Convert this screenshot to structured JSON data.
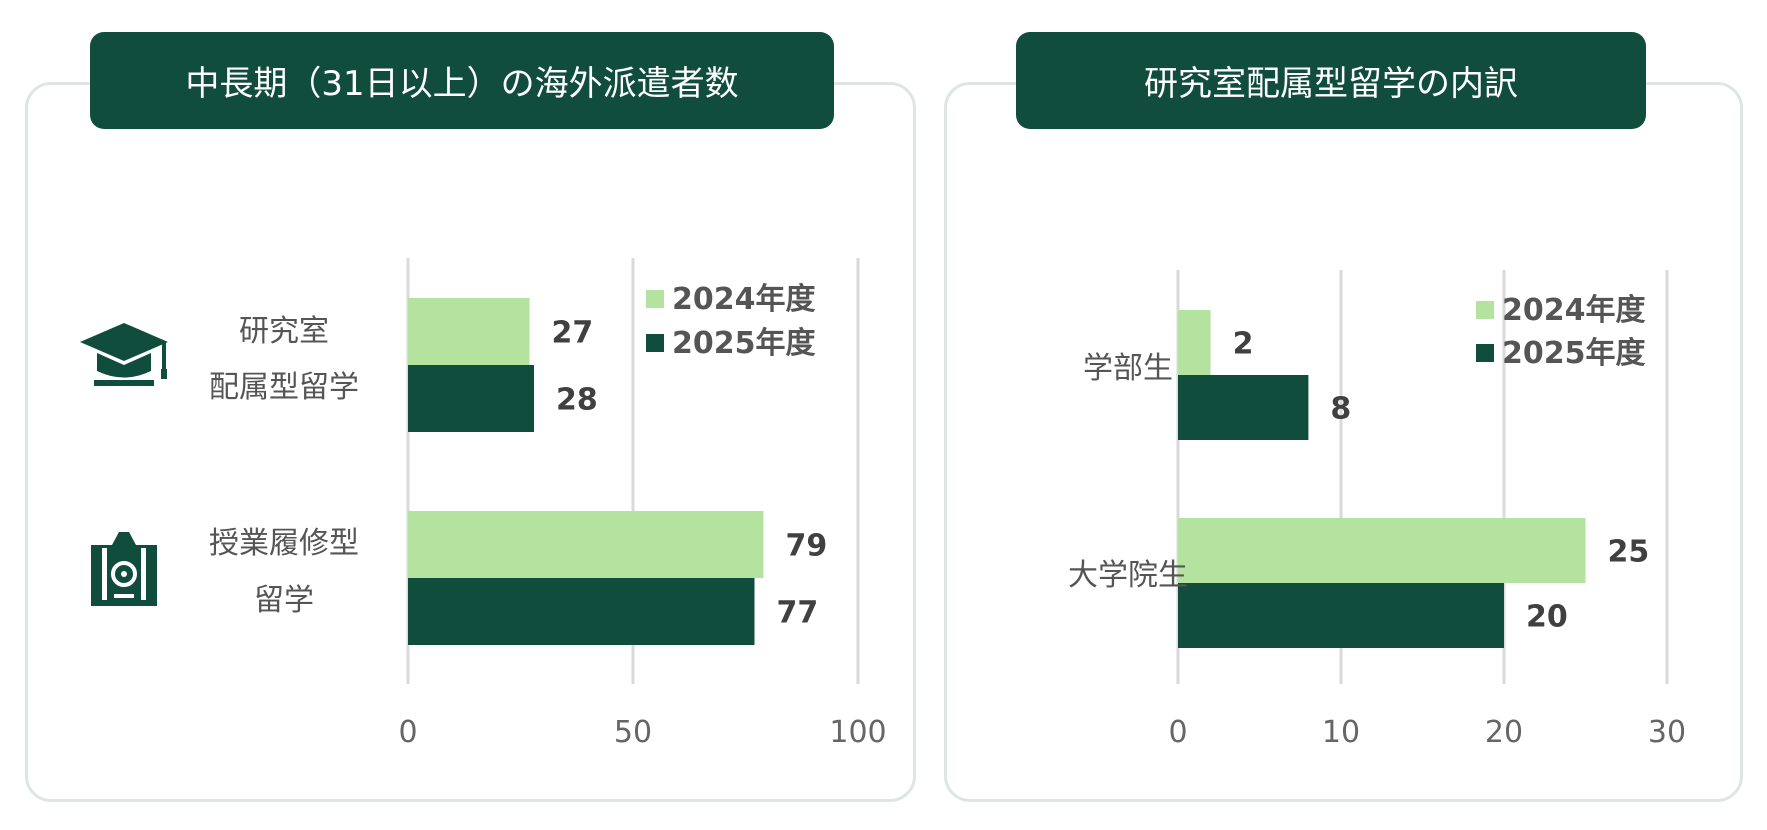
{
  "colors": {
    "dark_green": "#114d3c",
    "light_green": "#b4e3a0",
    "grid": "#d9d9d9",
    "panel_border": "#dde6e3"
  },
  "left": {
    "title": "中長期（31日以上）の海外派遣者数",
    "icons": [
      "graduation-cap-icon",
      "passport-icon"
    ]
  },
  "right": {
    "title": "研究室配属型留学の内訳"
  },
  "chart_data": [
    {
      "type": "bar",
      "orientation": "horizontal",
      "title": "中長期（31日以上）の海外派遣者数",
      "categories": [
        [
          "研究室",
          "配属型留学"
        ],
        [
          "授業履修型",
          "留学"
        ]
      ],
      "series": [
        {
          "name": "2024年度",
          "color": "#b4e3a0",
          "values": [
            27,
            79
          ]
        },
        {
          "name": "2025年度",
          "color": "#114d3c",
          "values": [
            28,
            77
          ]
        }
      ],
      "xlim": [
        0,
        100
      ],
      "ticks": [
        0,
        50,
        100
      ],
      "tick_labels": [
        "0",
        "50",
        "100"
      ],
      "grid": true,
      "legend_position": "top-right"
    },
    {
      "type": "bar",
      "orientation": "horizontal",
      "title": "研究室配属型留学の内訳",
      "categories": [
        [
          "学部生"
        ],
        [
          "大学院生"
        ]
      ],
      "series": [
        {
          "name": "2024年度",
          "color": "#b4e3a0",
          "values": [
            2,
            25
          ]
        },
        {
          "name": "2025年度",
          "color": "#114d3c",
          "values": [
            8,
            20
          ]
        }
      ],
      "xlim": [
        0,
        30
      ],
      "ticks": [
        0,
        10,
        20,
        30
      ],
      "tick_labels": [
        "0",
        "10",
        "20",
        "30"
      ],
      "grid": true,
      "legend_position": "top-right"
    }
  ]
}
